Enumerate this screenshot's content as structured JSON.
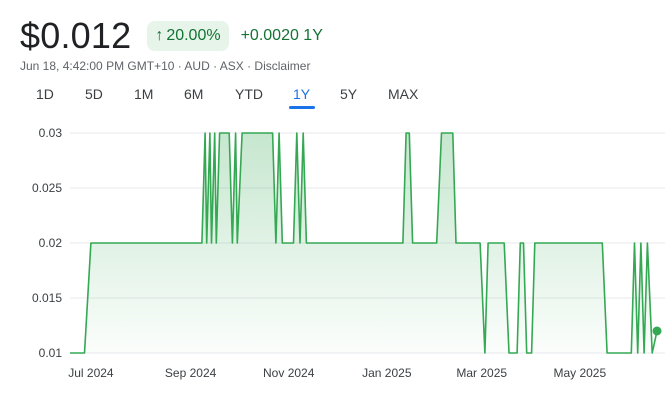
{
  "quote": {
    "price": "$0.012",
    "change_arrow": "↑",
    "change_pct": "20.00%",
    "change_abs": "+0.0020 1Y",
    "meta": "Jun 18, 4:42:00 PM GMT+10 · AUD · ASX · Disclaimer"
  },
  "ranges": {
    "tabs": [
      "1D",
      "5D",
      "1M",
      "6M",
      "YTD",
      "1Y",
      "5Y",
      "MAX"
    ],
    "selected": "1Y"
  },
  "colors": {
    "line": "#34a853",
    "positive_text": "#137333",
    "positive_bg": "#e6f4ea",
    "active_tab": "#1a73e8",
    "grid": "#e8eaed"
  },
  "chart_data": {
    "type": "area",
    "title": "",
    "xlabel": "",
    "ylabel": "",
    "ylim": [
      0.01,
      0.03
    ],
    "y_ticks": [
      0.03,
      0.025,
      0.02,
      0.015,
      0.01
    ],
    "y_tick_labels": [
      "0.03",
      "0.025",
      "0.02",
      "0.015",
      "0.01"
    ],
    "x_ticks": [
      "2024-07-01",
      "2024-09-01",
      "2024-11-01",
      "2025-01-01",
      "2025-03-01",
      "2025-05-01"
    ],
    "x_tick_labels": [
      "Jul 2024",
      "Sep 2024",
      "Nov 2024",
      "Jan 2025",
      "Mar 2025",
      "May 2025"
    ],
    "xlim": [
      "2024-06-18",
      "2025-06-18"
    ],
    "grid": true,
    "series": [
      {
        "name": "",
        "points": [
          [
            "2024-06-18",
            0.01
          ],
          [
            "2024-06-27",
            0.01
          ],
          [
            "2024-07-01",
            0.02
          ],
          [
            "2024-09-08",
            0.02
          ],
          [
            "2024-09-10",
            0.03
          ],
          [
            "2024-09-11",
            0.02
          ],
          [
            "2024-09-13",
            0.03
          ],
          [
            "2024-09-14",
            0.02
          ],
          [
            "2024-09-16",
            0.03
          ],
          [
            "2024-09-17",
            0.02
          ],
          [
            "2024-09-19",
            0.03
          ],
          [
            "2024-09-25",
            0.03
          ],
          [
            "2024-09-27",
            0.02
          ],
          [
            "2024-09-29",
            0.03
          ],
          [
            "2024-09-30",
            0.02
          ],
          [
            "2024-10-03",
            0.03
          ],
          [
            "2024-10-22",
            0.03
          ],
          [
            "2024-10-24",
            0.02
          ],
          [
            "2024-10-26",
            0.03
          ],
          [
            "2024-10-28",
            0.02
          ],
          [
            "2024-11-04",
            0.02
          ],
          [
            "2024-11-06",
            0.03
          ],
          [
            "2024-11-08",
            0.02
          ],
          [
            "2024-11-10",
            0.03
          ],
          [
            "2024-11-12",
            0.02
          ],
          [
            "2025-01-11",
            0.02
          ],
          [
            "2025-01-13",
            0.03
          ],
          [
            "2025-01-15",
            0.03
          ],
          [
            "2025-01-17",
            0.02
          ],
          [
            "2025-02-01",
            0.02
          ],
          [
            "2025-02-04",
            0.03
          ],
          [
            "2025-02-11",
            0.03
          ],
          [
            "2025-02-13",
            0.02
          ],
          [
            "2025-02-25",
            0.02
          ],
          [
            "2025-02-28",
            0.02
          ],
          [
            "2025-03-03",
            0.01
          ],
          [
            "2025-03-05",
            0.02
          ],
          [
            "2025-03-15",
            0.02
          ],
          [
            "2025-03-18",
            0.01
          ],
          [
            "2025-03-23",
            0.01
          ],
          [
            "2025-03-25",
            0.02
          ],
          [
            "2025-03-27",
            0.02
          ],
          [
            "2025-03-29",
            0.01
          ],
          [
            "2025-04-01",
            0.01
          ],
          [
            "2025-04-03",
            0.02
          ],
          [
            "2025-05-15",
            0.02
          ],
          [
            "2025-05-18",
            0.01
          ],
          [
            "2025-06-02",
            0.01
          ],
          [
            "2025-06-04",
            0.02
          ],
          [
            "2025-06-06",
            0.01
          ],
          [
            "2025-06-08",
            0.02
          ],
          [
            "2025-06-10",
            0.01
          ],
          [
            "2025-06-12",
            0.02
          ],
          [
            "2025-06-15",
            0.01
          ],
          [
            "2025-06-18",
            0.012
          ]
        ]
      }
    ]
  }
}
